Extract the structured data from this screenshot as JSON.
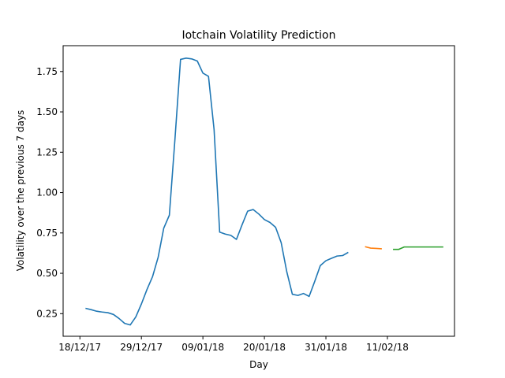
{
  "chart_data": {
    "type": "line",
    "title": "Iotchain Volatility Prediction",
    "xlabel": "Day",
    "ylabel": "Volatility over the previous 7 days",
    "x_tick_labels": [
      "18/12/17",
      "29/12/17",
      "09/01/18",
      "20/01/18",
      "31/01/18",
      "11/02/18"
    ],
    "x_tick_dates": [
      "2017-12-18",
      "2017-12-29",
      "2018-01-09",
      "2018-01-20",
      "2018-01-31",
      "2018-02-11"
    ],
    "xlim": [
      "2017-12-15",
      "2018-02-23"
    ],
    "ylim": [
      0.11,
      1.91
    ],
    "y_ticks": [
      "0.25",
      "0.50",
      "0.75",
      "1.00",
      "1.25",
      "1.50",
      "1.75"
    ],
    "grid": false,
    "series": [
      {
        "color": "#1f77b4",
        "points": [
          [
            "2017-12-19",
            0.283
          ],
          [
            "2017-12-20",
            0.275
          ],
          [
            "2017-12-21",
            0.265
          ],
          [
            "2017-12-22",
            0.26
          ],
          [
            "2017-12-23",
            0.256
          ],
          [
            "2017-12-24",
            0.245
          ],
          [
            "2017-12-25",
            0.22
          ],
          [
            "2017-12-26",
            0.19
          ],
          [
            "2017-12-27",
            0.18
          ],
          [
            "2017-12-28",
            0.23
          ],
          [
            "2017-12-29",
            0.31
          ],
          [
            "2017-12-30",
            0.4
          ],
          [
            "2017-12-31",
            0.48
          ],
          [
            "2018-01-01",
            0.6
          ],
          [
            "2018-01-02",
            0.78
          ],
          [
            "2018-01-03",
            0.86
          ],
          [
            "2018-01-04",
            1.33
          ],
          [
            "2018-01-05",
            1.825
          ],
          [
            "2018-01-06",
            1.833
          ],
          [
            "2018-01-07",
            1.828
          ],
          [
            "2018-01-08",
            1.815
          ],
          [
            "2018-01-09",
            1.74
          ],
          [
            "2018-01-10",
            1.72
          ],
          [
            "2018-01-11",
            1.39
          ],
          [
            "2018-01-12",
            0.755
          ],
          [
            "2018-01-13",
            0.743
          ],
          [
            "2018-01-14",
            0.735
          ],
          [
            "2018-01-15",
            0.71
          ],
          [
            "2018-01-16",
            0.8
          ],
          [
            "2018-01-17",
            0.885
          ],
          [
            "2018-01-18",
            0.895
          ],
          [
            "2018-01-19",
            0.867
          ],
          [
            "2018-01-20",
            0.833
          ],
          [
            "2018-01-21",
            0.815
          ],
          [
            "2018-01-22",
            0.785
          ],
          [
            "2018-01-23",
            0.69
          ],
          [
            "2018-01-24",
            0.51
          ],
          [
            "2018-01-25",
            0.37
          ],
          [
            "2018-01-26",
            0.363
          ],
          [
            "2018-01-27",
            0.375
          ],
          [
            "2018-01-28",
            0.357
          ],
          [
            "2018-01-29",
            0.45
          ],
          [
            "2018-01-30",
            0.548
          ],
          [
            "2018-01-31",
            0.578
          ],
          [
            "2018-02-01",
            0.593
          ],
          [
            "2018-02-02",
            0.607
          ],
          [
            "2018-02-03",
            0.61
          ],
          [
            "2018-02-04",
            0.63
          ]
        ]
      },
      {
        "color": "#ff7f0e",
        "points": [
          [
            "2018-02-07",
            0.665
          ],
          [
            "2018-02-08",
            0.656
          ],
          [
            "2018-02-09",
            0.654
          ],
          [
            "2018-02-10",
            0.652
          ]
        ]
      },
      {
        "color": "#2ca02c",
        "points": [
          [
            "2018-02-12",
            0.648
          ],
          [
            "2018-02-13",
            0.648
          ],
          [
            "2018-02-14",
            0.663
          ],
          [
            "2018-02-15",
            0.663
          ],
          [
            "2018-02-16",
            0.663
          ],
          [
            "2018-02-17",
            0.663
          ],
          [
            "2018-02-18",
            0.663
          ],
          [
            "2018-02-19",
            0.663
          ],
          [
            "2018-02-20",
            0.663
          ],
          [
            "2018-02-21",
            0.663
          ]
        ]
      }
    ]
  }
}
